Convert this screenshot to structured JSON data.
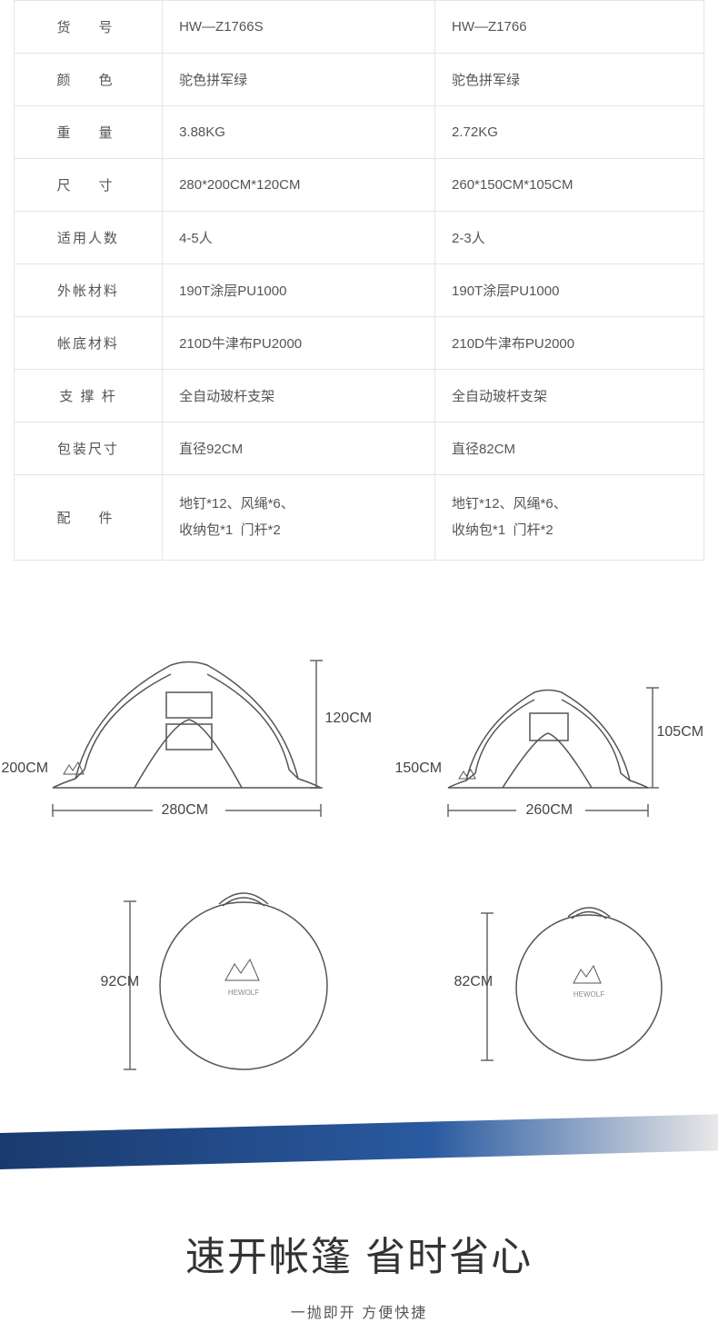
{
  "table": {
    "rows": [
      {
        "label": "货　号",
        "tight": false,
        "v1": "HW—Z1766S",
        "v2": "HW—Z1766"
      },
      {
        "label": "颜　色",
        "tight": false,
        "v1": "驼色拼军绿",
        "v2": "驼色拼军绿"
      },
      {
        "label": "重　量",
        "tight": false,
        "v1": "3.88KG",
        "v2": "2.72KG"
      },
      {
        "label": "尺　寸",
        "tight": false,
        "v1": "280*200CM*120CM",
        "v2": "260*150CM*105CM"
      },
      {
        "label": "适用人数",
        "tight": true,
        "v1": "4-5人",
        "v2": "2-3人"
      },
      {
        "label": "外帐材料",
        "tight": true,
        "v1": "190T涂层PU1000",
        "v2": "190T涂层PU1000"
      },
      {
        "label": "帐底材料",
        "tight": true,
        "v1": "210D牛津布PU2000",
        "v2": "210D牛津布PU2000"
      },
      {
        "label": "支 撑 杆",
        "tight": true,
        "v1": "全自动玻杆支架",
        "v2": "全自动玻杆支架"
      },
      {
        "label": "包装尺寸",
        "tight": true,
        "v1": "直径92CM",
        "v2": "直径82CM"
      },
      {
        "label": "配　件",
        "tight": false,
        "v1": "地钉*12、风绳*6、\n收纳包*1  门杆*2",
        "v2": "地钉*12、风绳*6、\n收纳包*1  门杆*2",
        "multi": true
      }
    ]
  },
  "diagram": {
    "tent1": {
      "width": "280CM",
      "depth": "200CM",
      "height": "120CM"
    },
    "tent2": {
      "width": "260CM",
      "depth": "150CM",
      "height": "105CM"
    },
    "bag1": {
      "diameter": "92CM"
    },
    "bag2": {
      "diameter": "82CM"
    },
    "logo": "HEWOLF"
  },
  "headline": {
    "big": "速开帐篷 省时省心",
    "sub": "一抛即开  方便快捷"
  },
  "colors": {
    "border": "#e5e5e5",
    "text": "#555",
    "banner_dark": "#1a3a6e",
    "banner_light": "#2a5aa0"
  }
}
